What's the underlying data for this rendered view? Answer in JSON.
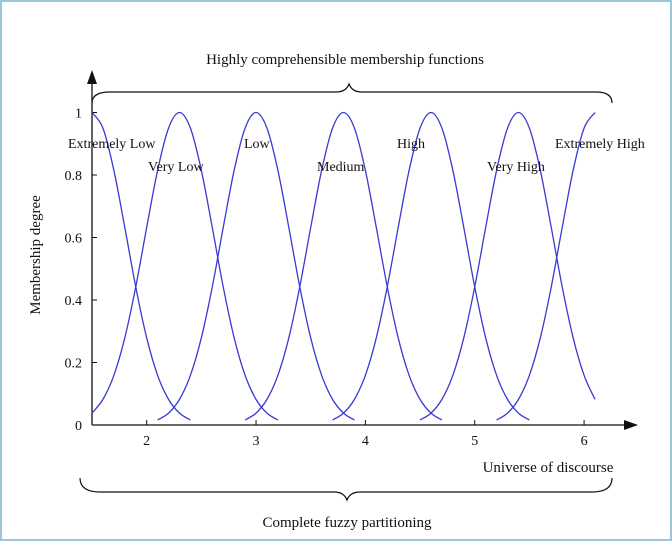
{
  "chart_data": {
    "type": "line",
    "title": "Highly comprehensible membership functions",
    "subtitle": "Complete fuzzy partitioning",
    "x_label": "Universe of discourse",
    "y_label": "Membership degree",
    "xlim": [
      1.5,
      6.42
    ],
    "ylim": [
      0,
      1.12
    ],
    "xticks": [
      2,
      3,
      4,
      5,
      6
    ],
    "yticks": [
      0,
      0.2,
      0.4,
      0.6,
      0.8,
      1
    ],
    "x": [
      1.5,
      1.6,
      1.7,
      1.8,
      1.9,
      2.0,
      2.1,
      2.2,
      2.3,
      2.4,
      2.5,
      2.6,
      2.7,
      2.8,
      2.9,
      3.0,
      3.1,
      3.2,
      3.3,
      3.4,
      3.5,
      3.6,
      3.7,
      3.8,
      3.9,
      4.0,
      4.1,
      4.2,
      4.3,
      4.4,
      4.5,
      4.6,
      4.7,
      4.8,
      4.9,
      5.0,
      5.1,
      5.2,
      5.3,
      5.4,
      5.5,
      5.6,
      5.7,
      5.8,
      5.9,
      6.0,
      6.1
    ],
    "series": [
      {
        "name": "Extremely Low",
        "color": "#3a3ad0",
        "values": [
          1,
          0.95,
          0.815,
          0.632,
          0.442,
          0.279,
          0.159,
          0.082,
          0.038,
          0.016,
          null,
          null,
          null,
          null,
          null,
          null,
          null,
          null,
          null,
          null,
          null,
          null,
          null,
          null,
          null,
          null,
          null,
          null,
          null,
          null,
          null,
          null,
          null,
          null,
          null,
          null,
          null,
          null,
          null,
          null,
          null,
          null,
          null,
          null,
          null,
          null,
          null
        ]
      },
      {
        "name": "Very Low",
        "color": "#3a3ad0",
        "values": [
          0.038,
          0.082,
          0.159,
          0.279,
          0.442,
          0.632,
          0.815,
          0.95,
          1,
          0.95,
          0.815,
          0.632,
          0.442,
          0.279,
          0.159,
          0.082,
          0.038,
          0.016,
          null,
          null,
          null,
          null,
          null,
          null,
          null,
          null,
          null,
          null,
          null,
          null,
          null,
          null,
          null,
          null,
          null,
          null,
          null,
          null,
          null,
          null,
          null,
          null,
          null,
          null,
          null,
          null,
          null
        ]
      },
      {
        "name": "Low",
        "color": "#3a3ad0",
        "values": [
          null,
          null,
          null,
          null,
          null,
          null,
          0.016,
          0.038,
          0.082,
          0.159,
          0.279,
          0.442,
          0.632,
          0.815,
          0.95,
          1,
          0.95,
          0.815,
          0.632,
          0.442,
          0.279,
          0.159,
          0.082,
          0.038,
          0.016,
          null,
          null,
          null,
          null,
          null,
          null,
          null,
          null,
          null,
          null,
          null,
          null,
          null,
          null,
          null,
          null,
          null,
          null,
          null,
          null,
          null,
          null
        ]
      },
      {
        "name": "Medium",
        "color": "#3a3ad0",
        "values": [
          null,
          null,
          null,
          null,
          null,
          null,
          null,
          null,
          null,
          null,
          null,
          null,
          null,
          null,
          0.016,
          0.038,
          0.082,
          0.159,
          0.279,
          0.442,
          0.632,
          0.815,
          0.95,
          1,
          0.95,
          0.815,
          0.632,
          0.442,
          0.279,
          0.159,
          0.082,
          0.038,
          0.016,
          null,
          null,
          null,
          null,
          null,
          null,
          null,
          null,
          null,
          null,
          null,
          null,
          null,
          null
        ]
      },
      {
        "name": "High",
        "color": "#3a3ad0",
        "values": [
          null,
          null,
          null,
          null,
          null,
          null,
          null,
          null,
          null,
          null,
          null,
          null,
          null,
          null,
          null,
          null,
          null,
          null,
          null,
          null,
          null,
          null,
          0.016,
          0.038,
          0.082,
          0.159,
          0.279,
          0.442,
          0.632,
          0.815,
          0.95,
          1,
          0.95,
          0.815,
          0.632,
          0.442,
          0.279,
          0.159,
          0.082,
          0.038,
          0.016,
          null,
          null,
          null,
          null,
          null,
          null
        ]
      },
      {
        "name": "Very High",
        "color": "#3a3ad0",
        "values": [
          null,
          null,
          null,
          null,
          null,
          null,
          null,
          null,
          null,
          null,
          null,
          null,
          null,
          null,
          null,
          null,
          null,
          null,
          null,
          null,
          null,
          null,
          null,
          null,
          null,
          null,
          null,
          null,
          null,
          null,
          0.016,
          0.038,
          0.082,
          0.159,
          0.279,
          0.442,
          0.632,
          0.815,
          0.95,
          1,
          0.95,
          0.815,
          0.632,
          0.442,
          0.279,
          0.159,
          0.082
        ]
      },
      {
        "name": "Extremely High",
        "color": "#3a3ad0",
        "values": [
          null,
          null,
          null,
          null,
          null,
          null,
          null,
          null,
          null,
          null,
          null,
          null,
          null,
          null,
          null,
          null,
          null,
          null,
          null,
          null,
          null,
          null,
          null,
          null,
          null,
          null,
          null,
          null,
          null,
          null,
          null,
          null,
          null,
          null,
          null,
          null,
          null,
          0.016,
          0.038,
          0.082,
          0.159,
          0.279,
          0.442,
          0.632,
          0.815,
          0.95,
          1
        ]
      }
    ]
  }
}
